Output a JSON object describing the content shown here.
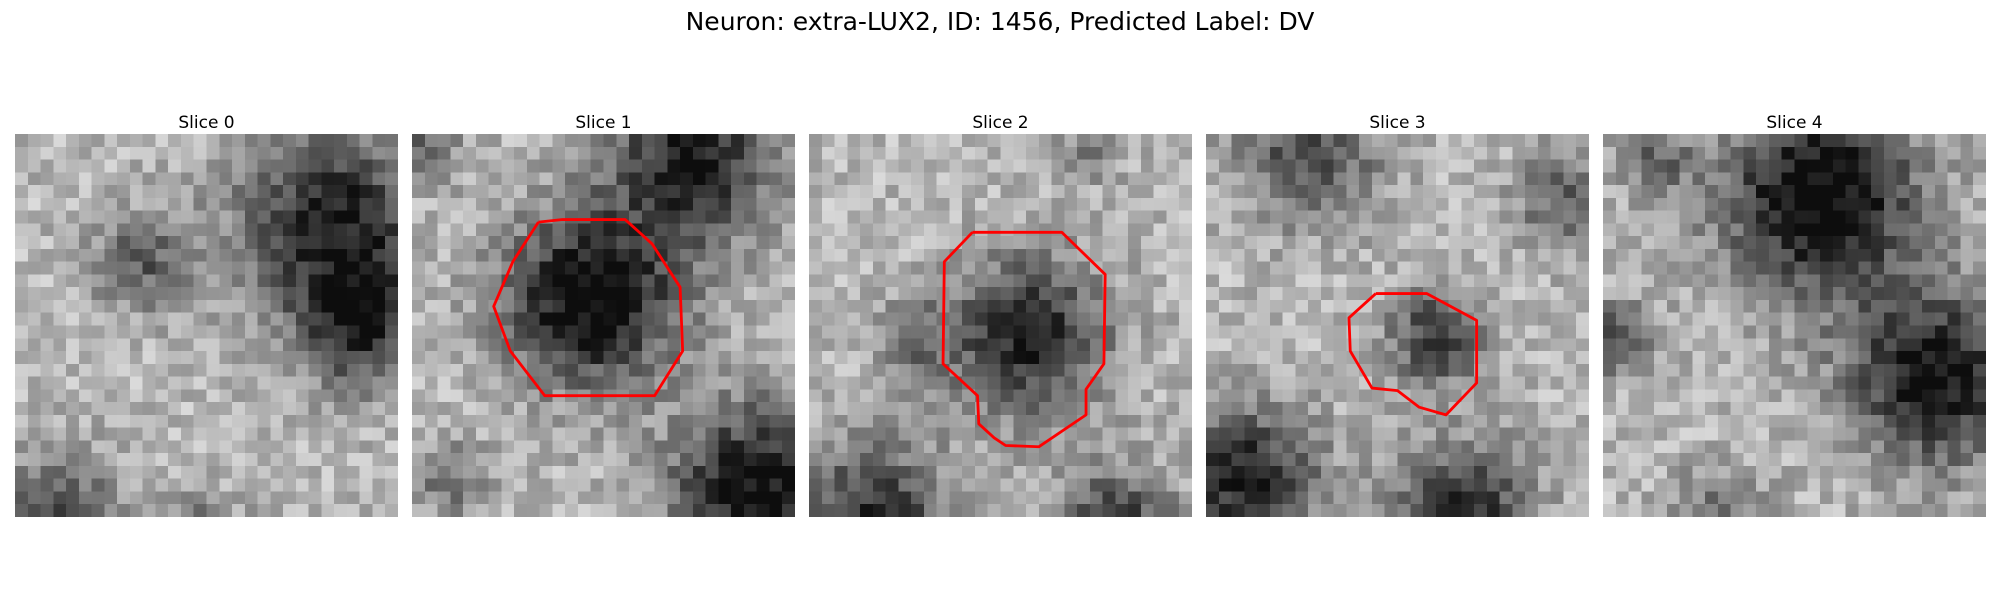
{
  "figure": {
    "title": "Neuron: extra-LUX2, ID: 1456, Predicted Label: DV"
  },
  "slices": [
    {
      "title": "Slice 0"
    },
    {
      "title": "Slice 1"
    },
    {
      "title": "Slice 2"
    },
    {
      "title": "Slice 3"
    },
    {
      "title": "Slice 4"
    }
  ],
  "style": {
    "contour_color": "#ff0000",
    "colormap": "grayscale"
  }
}
